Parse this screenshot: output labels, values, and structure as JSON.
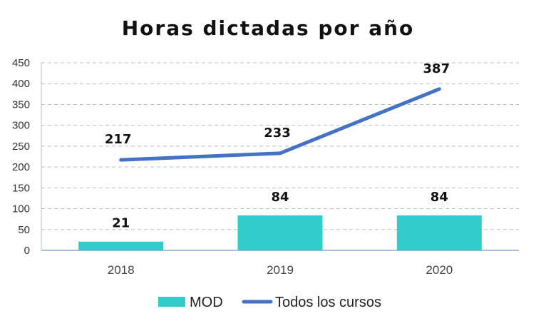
{
  "chart_data": {
    "type": "bar",
    "title": "Horas dictadas por año",
    "categories": [
      "2018",
      "2019",
      "2020"
    ],
    "ylim": [
      0,
      450
    ],
    "yticks": [
      0,
      50,
      100,
      150,
      200,
      250,
      300,
      350,
      400,
      450
    ],
    "grid": true,
    "legend_position": "bottom",
    "series": [
      {
        "name": "MOD",
        "kind": "bar",
        "color": "#33CCCC",
        "values": [
          21,
          84,
          84
        ]
      },
      {
        "name": "Todos los cursos",
        "kind": "line",
        "color": "#4472C4",
        "values": [
          217,
          233,
          387
        ]
      }
    ]
  }
}
